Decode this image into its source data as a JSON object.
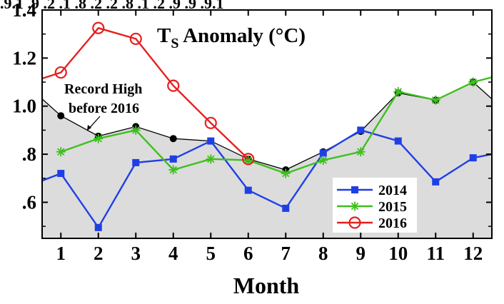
{
  "chart_data": {
    "type": "line",
    "title_main": "T",
    "title_sub": "S",
    "title_rest": " Anomaly (°C)",
    "xlabel": "Month",
    "ylabel": "",
    "xlim": [
      0.5,
      12.5
    ],
    "ylim": [
      0.45,
      1.4
    ],
    "categories": [
      "1",
      "2",
      "3",
      "4",
      "5",
      "6",
      "7",
      "8",
      "9",
      "10",
      "11",
      "12"
    ],
    "y_ticks": [
      {
        "value": 0.6,
        "label": ".6"
      },
      {
        "value": 0.8,
        "label": ".8"
      },
      {
        "value": 1.0,
        "label": "1.0"
      },
      {
        "value": 1.2,
        "label": "1.2"
      },
      {
        "value": 1.4,
        "label": "1.4"
      }
    ],
    "top_overflow_text": ".9.1 .9 .2 .1 .8 .2 .2 .8 .1 .2 .9 .9 .9.1",
    "record_high": {
      "label_line1": "Record High",
      "label_line2": "before 2016",
      "x": [
        0.5,
        1,
        2,
        3,
        4,
        5,
        6,
        7,
        8,
        9,
        10,
        11,
        12,
        12.5
      ],
      "values": [
        1.03,
        0.96,
        0.875,
        0.915,
        0.865,
        0.855,
        0.78,
        0.735,
        0.81,
        0.895,
        1.055,
        1.025,
        1.1,
        1.03
      ]
    },
    "series": [
      {
        "name": "2014",
        "color": "#1f3fe6",
        "marker": "square",
        "x": [
          0.5,
          1,
          2,
          3,
          4,
          5,
          6,
          7,
          8,
          9,
          10,
          11,
          12,
          12.5
        ],
        "values": [
          0.69,
          0.72,
          0.495,
          0.765,
          0.78,
          0.855,
          0.65,
          0.575,
          0.805,
          0.9,
          0.855,
          0.685,
          0.785,
          0.8
        ]
      },
      {
        "name": "2015",
        "color": "#3fbf1f",
        "marker": "asterisk",
        "x": [
          1,
          2,
          3,
          4,
          5,
          6,
          7,
          8,
          9,
          10,
          11,
          12,
          12.5
        ],
        "values": [
          0.81,
          0.865,
          0.9,
          0.735,
          0.78,
          0.775,
          0.72,
          0.775,
          0.81,
          1.06,
          1.025,
          1.1,
          1.12
        ]
      },
      {
        "name": "2016",
        "color": "#e61f1f",
        "marker": "circle",
        "x": [
          0.5,
          1,
          2,
          3,
          4,
          5,
          6
        ],
        "values": [
          1.115,
          1.14,
          1.325,
          1.28,
          1.085,
          0.93,
          0.78
        ]
      }
    ]
  }
}
